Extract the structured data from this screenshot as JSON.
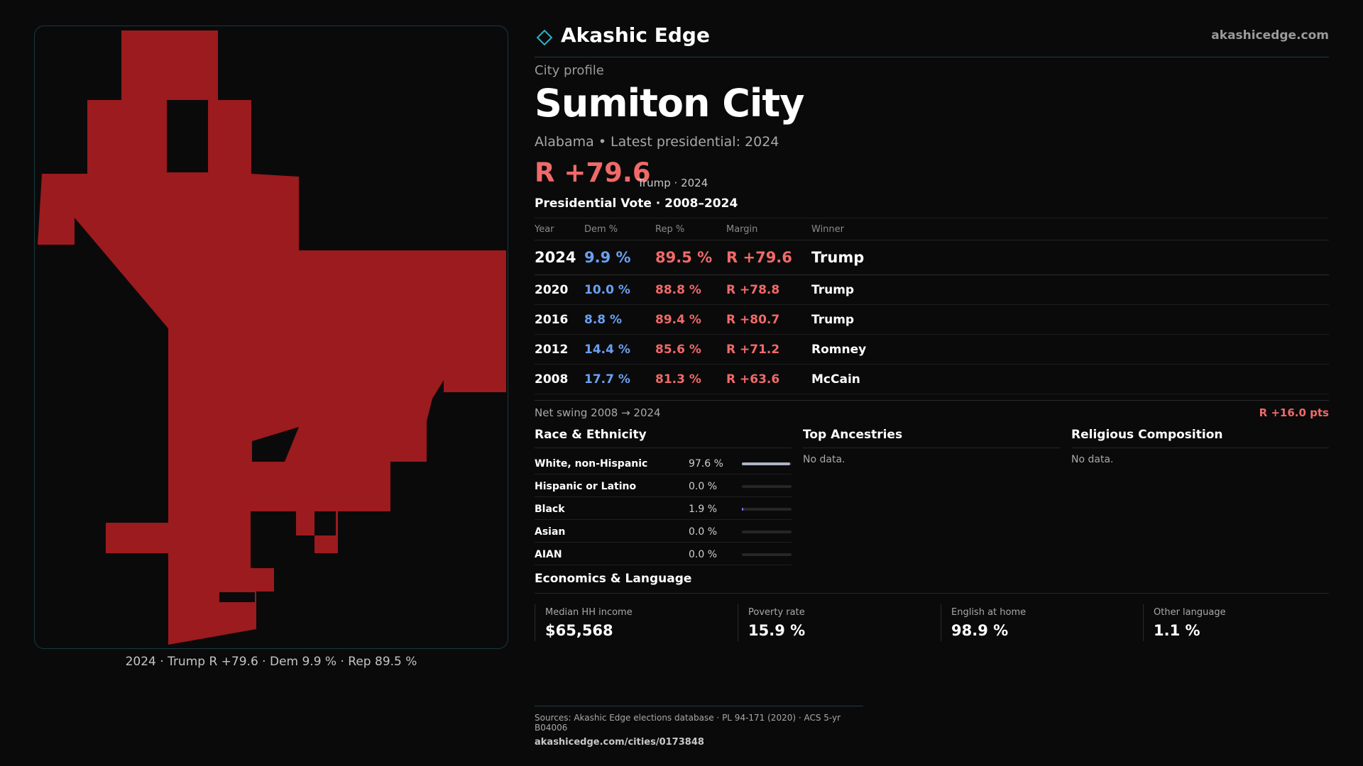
{
  "map": {
    "fill_color": "#9b1b1e",
    "caption": "2024 · Trump R +79.6 · Dem 9.9 % · Rep 89.5 %"
  },
  "header": {
    "brand": "Akashic Edge",
    "site": "akashicedge.com",
    "accent_color": "#2ab3c4"
  },
  "profile": {
    "eyebrow": "City profile",
    "city": "Sumiton City",
    "subtitle": "Alabama • Latest presidential: 2024",
    "margin": "R +79.6",
    "margin_note": "Trump · 2024"
  },
  "vote": {
    "title": "Presidential Vote · 2008–2024",
    "columns": [
      "Year",
      "Dem %",
      "Rep %",
      "Margin",
      "Winner"
    ],
    "rows": [
      {
        "year": "2024",
        "dem": "9.9 %",
        "rep": "89.5 %",
        "margin": "R +79.6",
        "winner": "Trump"
      },
      {
        "year": "2020",
        "dem": "10.0 %",
        "rep": "88.8 %",
        "margin": "R +78.8",
        "winner": "Trump"
      },
      {
        "year": "2016",
        "dem": "8.8 %",
        "rep": "89.4 %",
        "margin": "R +80.7",
        "winner": "Trump"
      },
      {
        "year": "2012",
        "dem": "14.4 %",
        "rep": "85.6 %",
        "margin": "R +71.2",
        "winner": "Romney"
      },
      {
        "year": "2008",
        "dem": "17.7 %",
        "rep": "81.3 %",
        "margin": "R +63.6",
        "winner": "McCain"
      }
    ],
    "swing_label": "Net swing 2008 → 2024",
    "swing_value": "R +16.0 pts"
  },
  "race": {
    "title": "Race & Ethnicity",
    "rows": [
      {
        "label": "White, non-Hispanic",
        "pct": "97.6 %",
        "share": 0.976
      },
      {
        "label": "Hispanic or Latino",
        "pct": "0.0 %",
        "share": 0.0
      },
      {
        "label": "Black",
        "pct": "1.9 %",
        "share": 0.019
      },
      {
        "label": "Asian",
        "pct": "0.0 %",
        "share": 0.0
      },
      {
        "label": "AIAN",
        "pct": "0.0 %",
        "share": 0.0
      }
    ]
  },
  "ancestries": {
    "title": "Top Ancestries",
    "empty": "No data."
  },
  "religion": {
    "title": "Religious Composition",
    "empty": "No data."
  },
  "economics": {
    "title": "Economics & Language",
    "cards": [
      {
        "label": "Median HH income",
        "value": "$65,568"
      },
      {
        "label": "Poverty rate",
        "value": "15.9 %"
      },
      {
        "label": "English at home",
        "value": "98.9 %"
      },
      {
        "label": "Other language",
        "value": "1.1 %"
      }
    ]
  },
  "sources": {
    "text": "Sources: Akashic Edge elections database · PL 94-171 (2020) · ACS 5-yr B04006",
    "url": "akashicedge.com/cities/0173848"
  }
}
